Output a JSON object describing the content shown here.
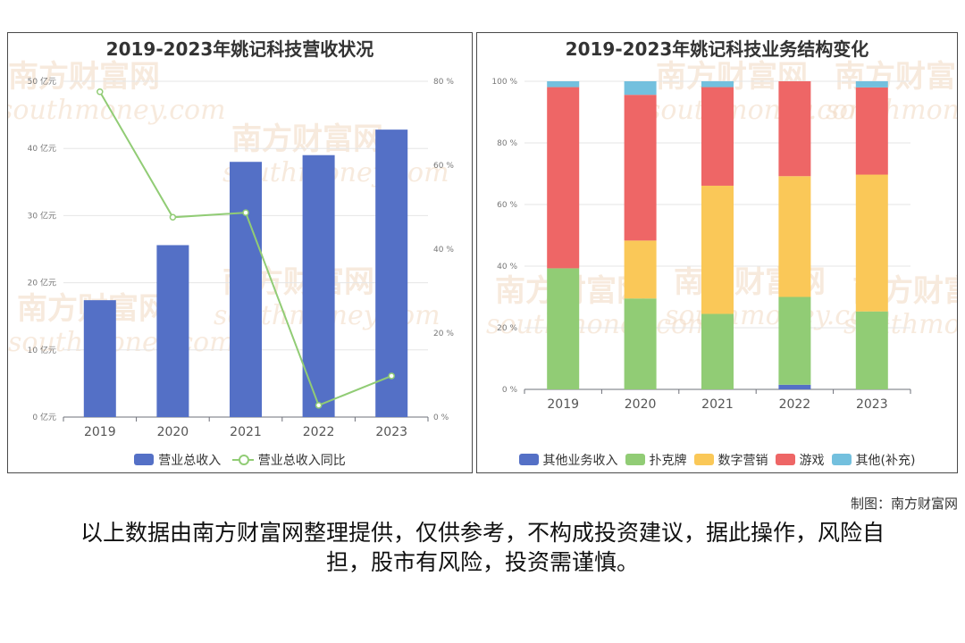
{
  "left_chart": {
    "title": "2019-2023年姚记科技营收状况",
    "legend": {
      "bar": "营业总收入",
      "line": "营业总收入同比"
    }
  },
  "right_chart": {
    "title": "2019-2023年姚记科技业务结构变化",
    "legend": [
      "其他业务收入",
      "扑克牌",
      "数字营销",
      "游戏",
      "其他(补充)"
    ]
  },
  "watermark": {
    "cn": "南方财富网",
    "en": "southmoney.com"
  },
  "credit": "制图：南方财富网",
  "disclaimer": "以上数据由南方财富网整理提供，仅供参考，不构成投资建议，据此操作，风险自担，股市有风险，投资需谨慎。",
  "colors": {
    "revenue_bar": "#5470c6",
    "yoy_line": "#91cc75",
    "other_business": "#5470c6",
    "poker": "#91cc75",
    "digital_marketing": "#fac858",
    "games": "#ee6666",
    "other_supplement": "#73c0de"
  },
  "chart_data": [
    {
      "type": "bar",
      "title": "2019-2023年姚记科技营收状况",
      "categories": [
        "2019",
        "2020",
        "2021",
        "2022",
        "2023"
      ],
      "series": [
        {
          "name": "营业总收入",
          "type": "bar",
          "axis": "left",
          "values": [
            17.4,
            25.6,
            38.0,
            39.0,
            42.8
          ]
        },
        {
          "name": "营业总收入同比",
          "type": "line",
          "axis": "right",
          "values": [
            77.5,
            47.6,
            48.7,
            2.8,
            9.8
          ]
        }
      ],
      "y_left": {
        "range": [
          0,
          50
        ],
        "ticks": [
          0,
          10,
          20,
          30,
          40,
          50
        ],
        "unit": "亿元"
      },
      "y_right": {
        "range": [
          0,
          80
        ],
        "ticks": [
          0,
          20,
          40,
          60,
          80
        ],
        "unit": "%"
      },
      "grid": true,
      "legend": "bottom"
    },
    {
      "type": "bar",
      "stacked": true,
      "title": "2019-2023年姚记科技业务结构变化",
      "categories": [
        "2019",
        "2020",
        "2021",
        "2022",
        "2023"
      ],
      "series": [
        {
          "name": "其他业务收入",
          "values": [
            0,
            0,
            0,
            1.5,
            0
          ]
        },
        {
          "name": "扑克牌",
          "values": [
            39.3,
            29.5,
            24.5,
            28.5,
            25.3
          ]
        },
        {
          "name": "数字营销",
          "values": [
            0,
            18.8,
            41.6,
            39.2,
            44.4
          ]
        },
        {
          "name": "游戏",
          "values": [
            58.8,
            47.3,
            32.0,
            30.8,
            28.3
          ]
        },
        {
          "name": "其他(补充)",
          "values": [
            1.9,
            4.4,
            1.9,
            0,
            2.0
          ]
        }
      ],
      "y": {
        "range": [
          0,
          100
        ],
        "ticks": [
          0,
          20,
          40,
          60,
          80,
          100
        ],
        "unit": "%"
      },
      "grid": true,
      "legend": "bottom"
    }
  ]
}
